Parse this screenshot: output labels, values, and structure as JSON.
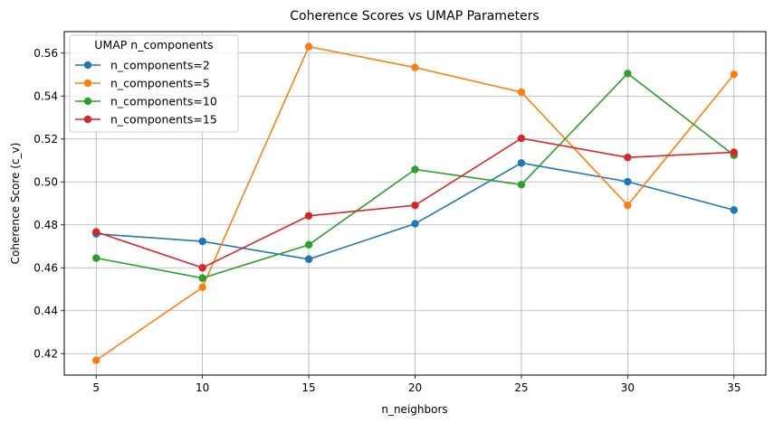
{
  "chart_data": {
    "type": "line",
    "title": "Coherence Scores vs UMAP Parameters",
    "xlabel": "n_neighbors",
    "ylabel": "Coherence Score (c_v)",
    "x": [
      5,
      10,
      15,
      20,
      25,
      30,
      35
    ],
    "xticks": [
      "5",
      "10",
      "15",
      "20",
      "25",
      "30",
      "35"
    ],
    "yticks": [
      "0.42",
      "0.44",
      "0.46",
      "0.48",
      "0.50",
      "0.52",
      "0.54",
      "0.56"
    ],
    "xlim": [
      3.5,
      36.5
    ],
    "ylim": [
      0.41,
      0.57
    ],
    "grid": true,
    "legend": {
      "title": "UMAP n_components",
      "position": "top-left"
    },
    "series": [
      {
        "name": "n_components=2",
        "color": "#1f77b4",
        "values": [
          0.4758,
          0.4723,
          0.464,
          0.4805,
          0.5088,
          0.5001,
          0.4869
        ]
      },
      {
        "name": "n_components=5",
        "color": "#ff7f0e",
        "values": [
          0.4169,
          0.4509,
          0.563,
          0.5533,
          0.5418,
          0.4891,
          0.5501
        ]
      },
      {
        "name": "n_components=10",
        "color": "#2ca02c",
        "values": [
          0.4645,
          0.4552,
          0.4707,
          0.5058,
          0.4987,
          0.5505,
          0.5124
        ]
      },
      {
        "name": "n_components=15",
        "color": "#d62728",
        "values": [
          0.4767,
          0.46,
          0.4842,
          0.4891,
          0.5203,
          0.5114,
          0.5138
        ]
      }
    ]
  }
}
